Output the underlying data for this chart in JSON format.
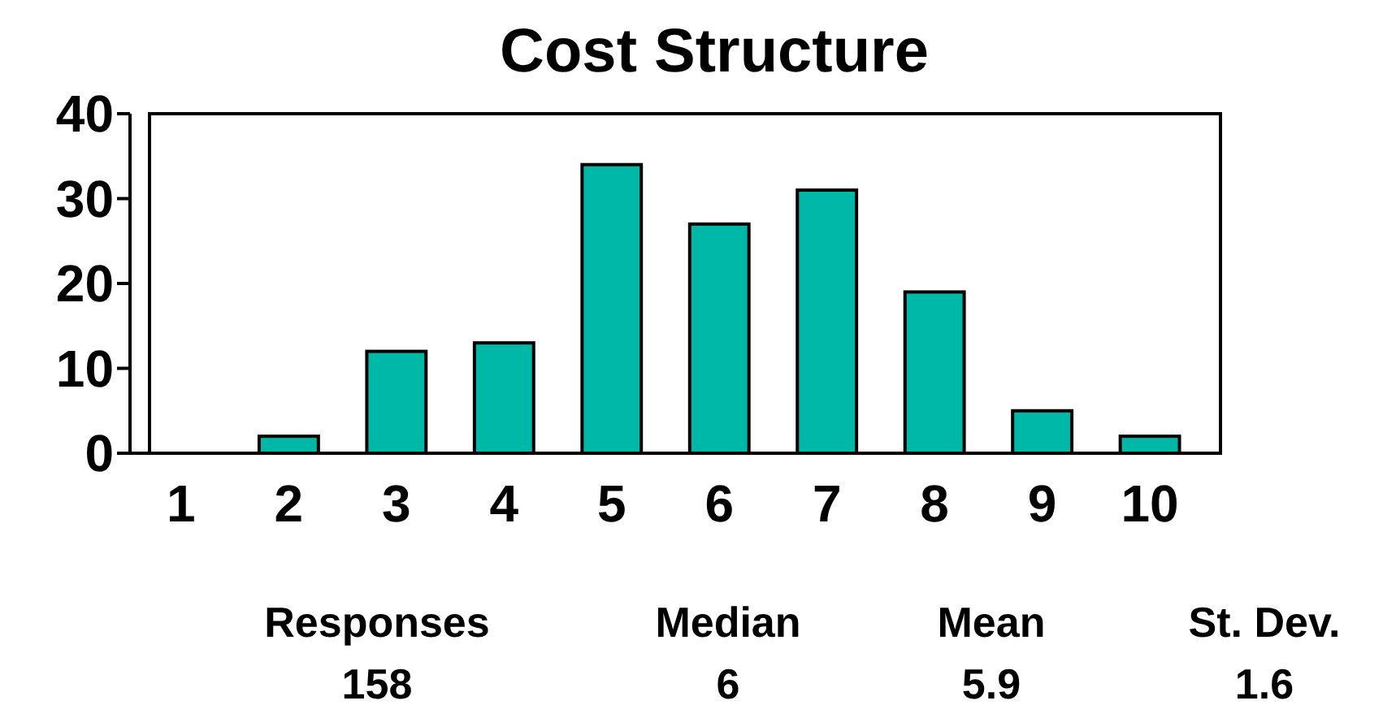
{
  "chart_data": {
    "type": "bar",
    "title": "Cost Structure",
    "categories": [
      "1",
      "2",
      "3",
      "4",
      "5",
      "6",
      "7",
      "8",
      "9",
      "10"
    ],
    "values": [
      0,
      2,
      12,
      13,
      34,
      27,
      31,
      19,
      5,
      2
    ],
    "color": "#00b8a8",
    "ylim": [
      0,
      40
    ],
    "yticks": [
      0,
      10,
      20,
      30,
      40
    ],
    "grid": false,
    "annotations": [
      "Responses",
      "158",
      "Median",
      "6",
      "Mean",
      "5.9",
      "St. Dev.",
      "1.6"
    ]
  }
}
